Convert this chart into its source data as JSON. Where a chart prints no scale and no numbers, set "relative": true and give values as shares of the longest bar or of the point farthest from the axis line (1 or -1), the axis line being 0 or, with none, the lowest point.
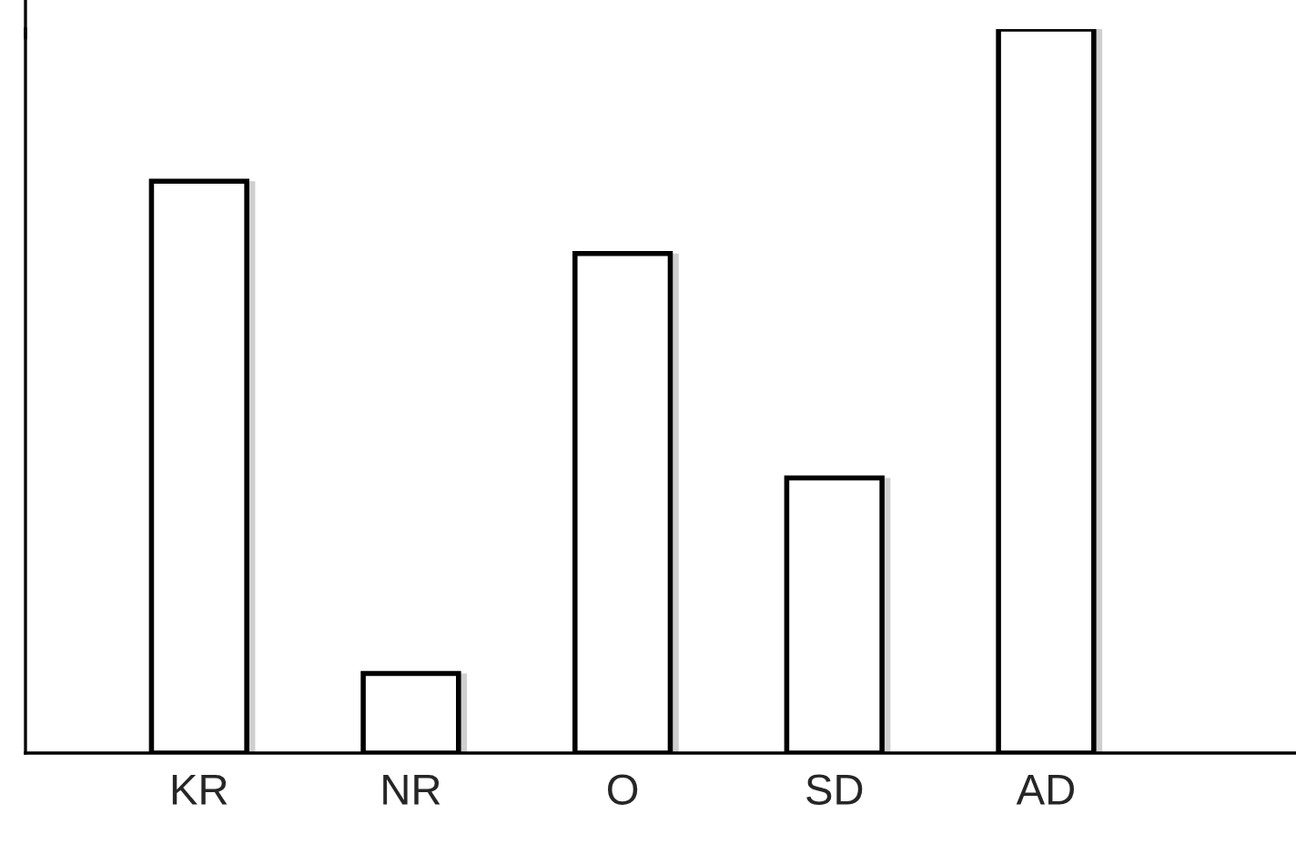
{
  "chart_data": {
    "type": "bar",
    "relative": true,
    "categories": [
      "KR",
      "NR",
      "O",
      "SD",
      "AD"
    ],
    "values": [
      0.79,
      0.11,
      0.69,
      0.38,
      1.0
    ],
    "color": "#ffffff"
  }
}
